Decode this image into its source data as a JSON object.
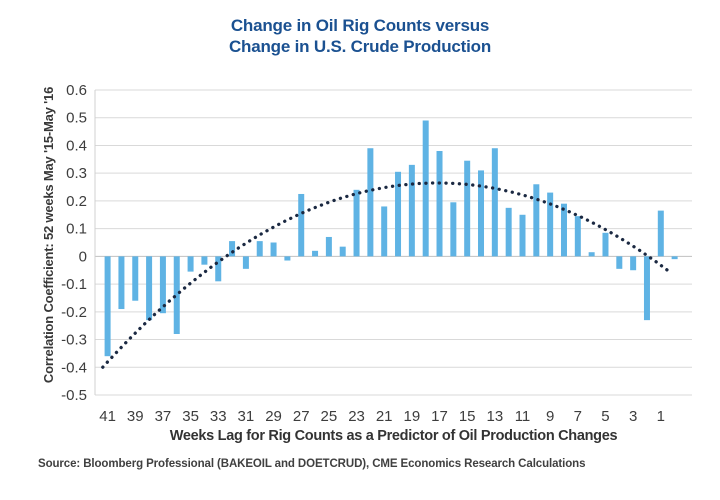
{
  "title": {
    "line1": "Change in Oil Rig Counts versus",
    "line2": "Change in U.S. Crude Production",
    "color": "#1b5191"
  },
  "source": {
    "text": "Source: Bloomberg Professional (BAKEOIL and DOETCRUD), CME Economics Research Calculations"
  },
  "colors": {
    "bar": "#5fb3e4",
    "trend_dots": "#1b2942",
    "gridline": "#d9d9d9",
    "zero_line": "#c0c0c0",
    "axis_line": "#d0d0d0",
    "tick_text": "#3d3d3d"
  },
  "chart_data": {
    "type": "bar",
    "title": "Change in Oil Rig Counts versus Change in U.S. Crude Production",
    "xlabel": "Weeks Lag for Rig Counts as a Predictor of Oil Production Changes",
    "ylabel": "Correlation Coefficient: 52 weeks May '15-May '16",
    "x_axis_note": "weeks lag plotted right-to-left, from 41 down to 0",
    "weeks": [
      41,
      40,
      39,
      38,
      37,
      36,
      35,
      34,
      33,
      32,
      31,
      30,
      29,
      28,
      27,
      26,
      25,
      24,
      23,
      22,
      21,
      20,
      19,
      18,
      17,
      16,
      15,
      14,
      13,
      12,
      11,
      10,
      9,
      8,
      7,
      6,
      5,
      4,
      3,
      2,
      1,
      0
    ],
    "values": [
      -0.36,
      -0.19,
      -0.16,
      -0.23,
      -0.205,
      -0.28,
      -0.055,
      -0.03,
      -0.09,
      0.055,
      -0.045,
      0.055,
      0.05,
      -0.015,
      0.225,
      0.02,
      0.07,
      0.035,
      0.24,
      0.39,
      0.18,
      0.305,
      0.33,
      0.49,
      0.38,
      0.195,
      0.345,
      0.31,
      0.39,
      0.175,
      0.15,
      0.26,
      0.23,
      0.19,
      0.145,
      0.015,
      0.085,
      -0.045,
      -0.05,
      -0.23,
      0.165,
      -0.01
    ],
    "x_tick_labels": [
      "41",
      "39",
      "37",
      "35",
      "33",
      "31",
      "29",
      "27",
      "25",
      "23",
      "21",
      "19",
      "17",
      "15",
      "13",
      "11",
      "9",
      "7",
      "5",
      "3",
      "1"
    ],
    "x_tick_weeks": [
      41,
      39,
      37,
      35,
      33,
      31,
      29,
      27,
      25,
      23,
      21,
      19,
      17,
      15,
      13,
      11,
      9,
      7,
      5,
      3,
      1
    ],
    "y_tick_labels": [
      "0.6",
      "0.5",
      "0.4",
      "0.3",
      "0.2",
      "0.1",
      "0",
      "-0.1",
      "-0.2",
      "-0.3",
      "-0.4",
      "-0.5"
    ],
    "y_ticks": [
      0.6,
      0.5,
      0.4,
      0.3,
      0.2,
      0.1,
      0,
      -0.1,
      -0.2,
      -0.3,
      -0.4,
      -0.5
    ],
    "ylim": [
      -0.5,
      0.6
    ],
    "grid": "horizontal",
    "legend": "none",
    "trend_line": {
      "style": "dotted",
      "model": "quadratic: y = a*w^2 + b*w + c (w = weeks lag)",
      "a": -0.001136,
      "b": 0.039,
      "c": -0.07,
      "domain_weeks": [
        41.35,
        0.35
      ],
      "peak": {
        "week": 17.2,
        "value": 0.265
      }
    }
  }
}
